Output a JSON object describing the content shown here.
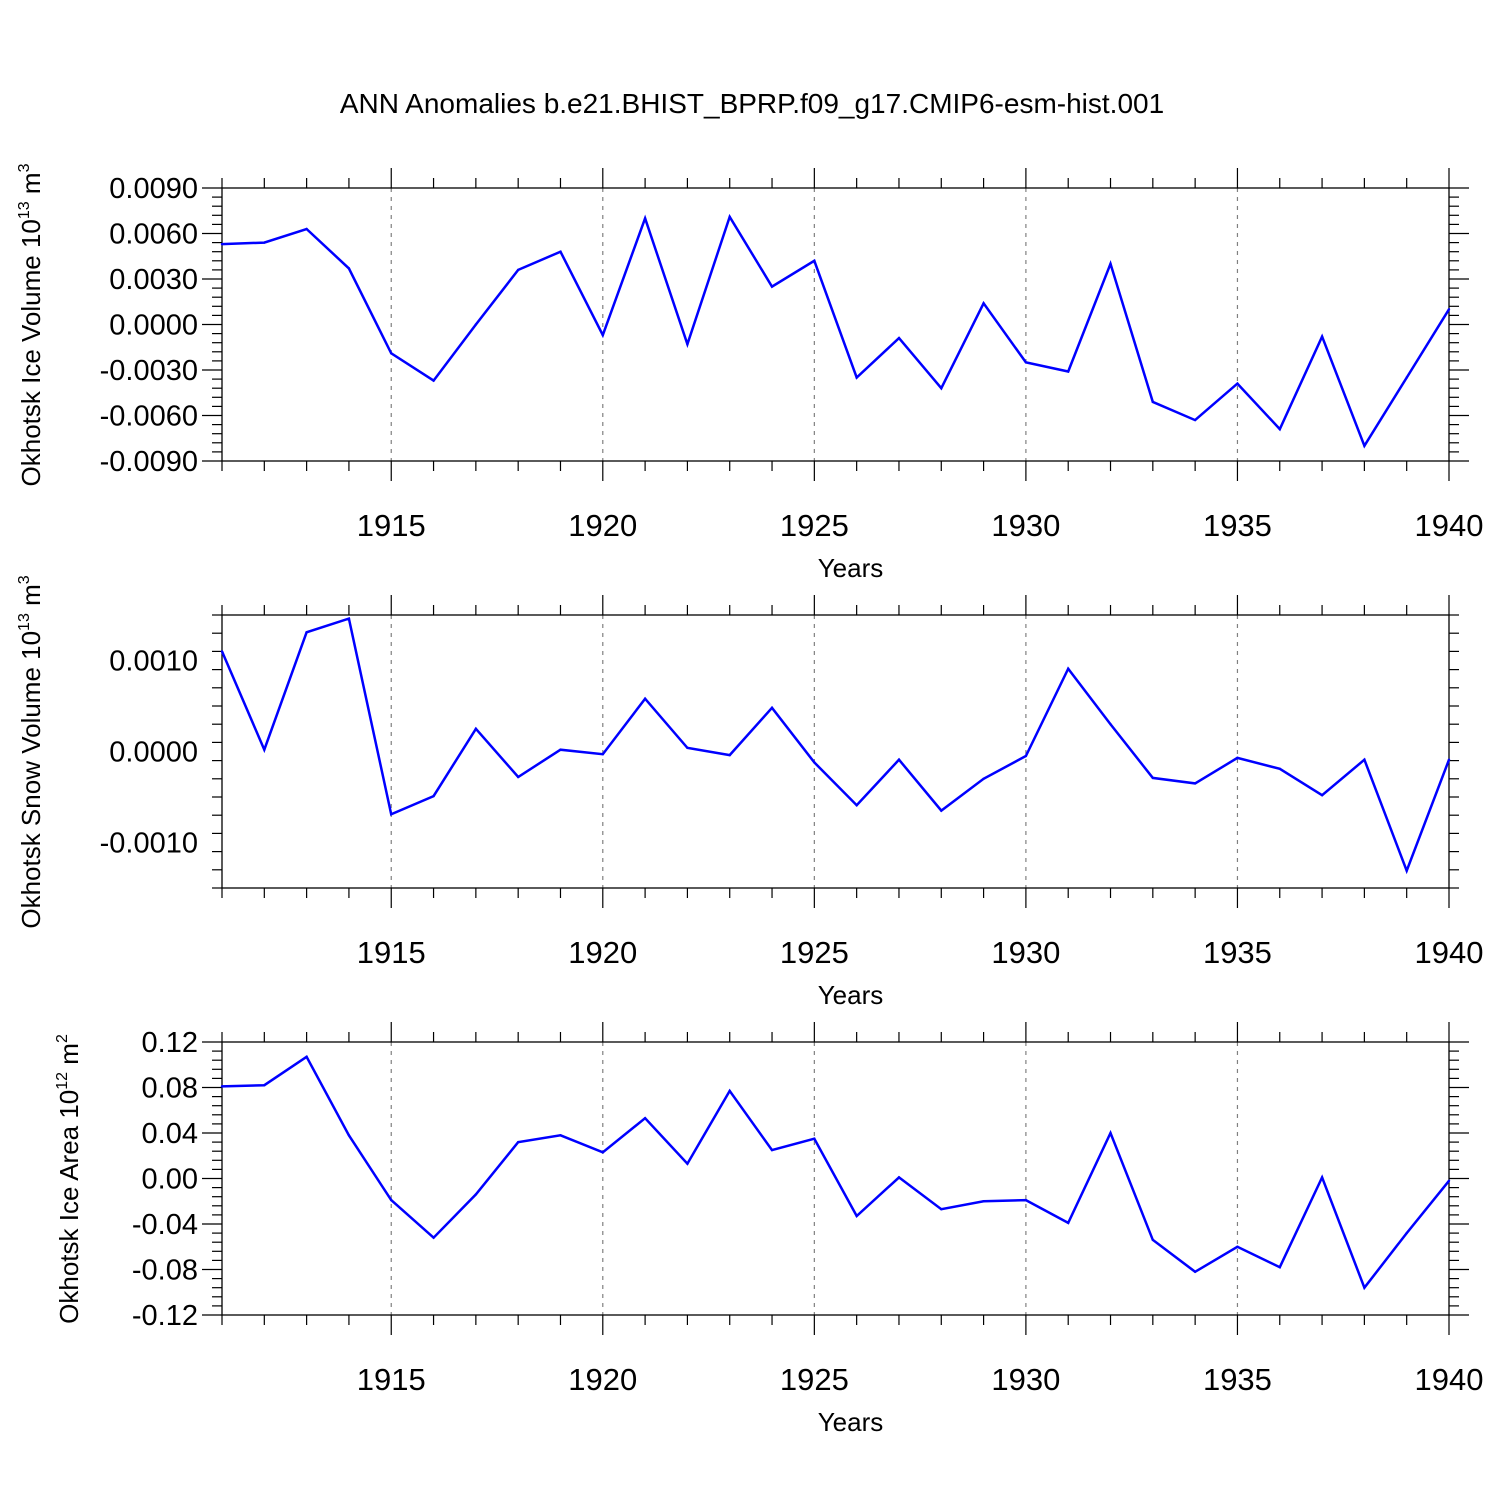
{
  "title": "ANN Anomalies b.e21.BHIST_BPRP.f09_g17.CMIP6-esm-hist.001",
  "colors": {
    "line": "#0000ff",
    "axis": "#000000",
    "grid": "#808080"
  },
  "chart_data": [
    {
      "type": "line",
      "ylabel_main": "Okhotsk Ice Volume 10",
      "ylabel_exp": "13",
      "ylabel_unit": " m",
      "ylabel_unit_exp": "3",
      "xlabel": "Years",
      "xlim": [
        1911,
        1940
      ],
      "ylim": [
        -0.009,
        0.009
      ],
      "yticks": [
        "0.0090",
        "0.0060",
        "0.0030",
        "0.0000",
        "-0.0030",
        "-0.0060",
        "-0.0090"
      ],
      "xticks": [
        "1915",
        "1920",
        "1925",
        "1930",
        "1935",
        "1940"
      ],
      "grid": "vertical-dashed",
      "x": [
        1911,
        1912,
        1913,
        1914,
        1915,
        1916,
        1917,
        1918,
        1919,
        1920,
        1921,
        1922,
        1923,
        1924,
        1925,
        1926,
        1927,
        1928,
        1929,
        1930,
        1931,
        1932,
        1933,
        1934,
        1935,
        1936,
        1937,
        1938,
        1939,
        1940
      ],
      "values": [
        0.0053,
        0.0054,
        0.0063,
        0.0037,
        -0.0019,
        -0.0037,
        0.0,
        0.0036,
        0.0048,
        -0.0007,
        0.007,
        -0.0013,
        0.0071,
        0.0025,
        0.0042,
        -0.0035,
        -0.0009,
        -0.0042,
        0.0014,
        -0.0025,
        -0.0031,
        0.004,
        -0.0051,
        -0.0063,
        -0.0039,
        -0.0069,
        -0.0008,
        -0.008,
        -0.0035,
        0.001
      ]
    },
    {
      "type": "line",
      "ylabel_main": "Okhotsk Snow Volume 10",
      "ylabel_exp": "13",
      "ylabel_unit": " m",
      "ylabel_unit_exp": "3",
      "xlabel": "Years",
      "xlim": [
        1911,
        1940
      ],
      "ylim": [
        -0.0015,
        0.0015
      ],
      "yticks": [
        "0.0010",
        "0.0000",
        "-0.0010"
      ],
      "xticks": [
        "1915",
        "1920",
        "1925",
        "1930",
        "1935",
        "1940"
      ],
      "grid": "vertical-dashed",
      "x": [
        1911,
        1912,
        1913,
        1914,
        1915,
        1916,
        1917,
        1918,
        1919,
        1920,
        1921,
        1922,
        1923,
        1924,
        1925,
        1926,
        1927,
        1928,
        1929,
        1930,
        1931,
        1932,
        1933,
        1934,
        1935,
        1936,
        1937,
        1938,
        1939,
        1940
      ],
      "values": [
        0.0011,
        2e-05,
        0.00131,
        0.00146,
        -0.00069,
        -0.00049,
        0.00025,
        -0.00028,
        2e-05,
        -3e-05,
        0.00058,
        4e-05,
        -4e-05,
        0.00048,
        -0.00012,
        -0.00059,
        -9e-05,
        -0.00065,
        -0.0003,
        -5e-05,
        0.00091,
        0.0003,
        -0.00029,
        -0.00035,
        -7e-05,
        -0.00019,
        -0.00048,
        -9e-05,
        -0.00131,
        -9e-05
      ]
    },
    {
      "type": "line",
      "ylabel_main": "Okhotsk Ice Area 10",
      "ylabel_exp": "12",
      "ylabel_unit": " m",
      "ylabel_unit_exp": "2",
      "xlabel": "Years",
      "xlim": [
        1911,
        1940
      ],
      "ylim": [
        -0.12,
        0.12
      ],
      "yticks": [
        "0.12",
        "0.08",
        "0.04",
        "0.00",
        "-0.04",
        "-0.08",
        "-0.12"
      ],
      "xticks": [
        "1915",
        "1920",
        "1925",
        "1930",
        "1935",
        "1940"
      ],
      "grid": "vertical-dashed",
      "x": [
        1911,
        1912,
        1913,
        1914,
        1915,
        1916,
        1917,
        1918,
        1919,
        1920,
        1921,
        1922,
        1923,
        1924,
        1925,
        1926,
        1927,
        1928,
        1929,
        1930,
        1931,
        1932,
        1933,
        1934,
        1935,
        1936,
        1937,
        1938,
        1939,
        1940
      ],
      "values": [
        0.081,
        0.082,
        0.107,
        0.038,
        -0.019,
        -0.052,
        -0.014,
        0.032,
        0.038,
        0.023,
        0.053,
        0.013,
        0.077,
        0.025,
        0.035,
        -0.033,
        0.001,
        -0.027,
        -0.02,
        -0.019,
        -0.039,
        0.04,
        -0.054,
        -0.082,
        -0.06,
        -0.078,
        0.001,
        -0.096,
        -0.048,
        -0.002
      ]
    }
  ]
}
